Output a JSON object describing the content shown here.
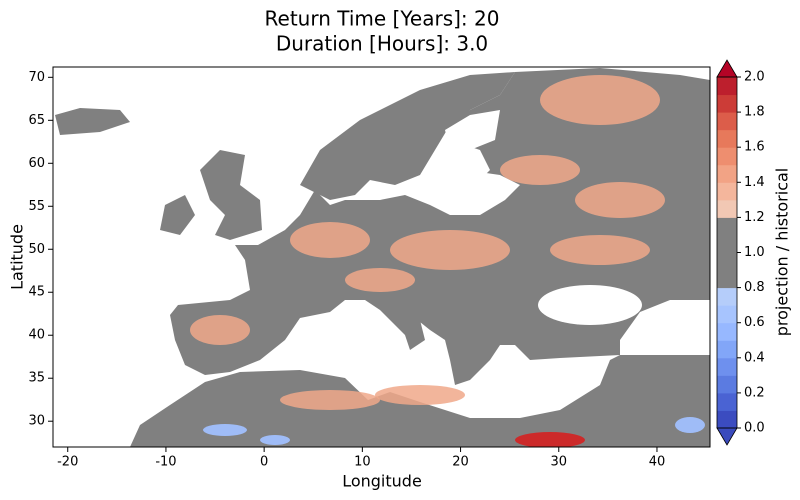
{
  "chart_data": {
    "type": "map",
    "title": "Return Time [Years]: 20",
    "subtitle": "Duration [Hours]: 3.0",
    "xlabel": "Longitude",
    "ylabel": "Latitude",
    "xlim": [
      -21.5,
      45.4
    ],
    "ylim": [
      27,
      71.2
    ],
    "xticks": [
      -20,
      -10,
      0,
      10,
      20,
      30,
      40
    ],
    "yticks": [
      30,
      35,
      40,
      45,
      50,
      55,
      60,
      65,
      70
    ],
    "colorbar": {
      "label": "projection / historical",
      "levels": [
        0,
        0.1,
        0.2,
        0.3,
        0.4,
        0.5,
        0.6,
        0.7,
        0.8,
        0.9,
        1.0,
        1.1,
        1.2,
        1.3,
        1.4,
        1.5,
        1.6,
        1.7,
        1.8,
        1.9,
        2.0
      ],
      "colors": [
        "#3b4cc0",
        "#4a63d3",
        "#5b7be1",
        "#6e90ee",
        "#82a6f8",
        "#97b8ff",
        "#a7c4fe",
        "#b5cdfa",
        "#808080",
        "#808080",
        "#808080",
        "#808080",
        "#f2c8b4",
        "#f4b69c",
        "#f2a385",
        "#ee8e6f",
        "#e7795b",
        "#dc5d4a",
        "#cc3c37",
        "#bd1f2d"
      ],
      "under_color": "#3a4bbd",
      "over_color": "#b40426",
      "ticks": [
        {
          "value": 0,
          "label": "0.0"
        },
        {
          "value": 0.2,
          "label": "0.2"
        },
        {
          "value": 0.4,
          "label": "0.4"
        },
        {
          "value": 0.6,
          "label": "0.6"
        },
        {
          "value": 0.8,
          "label": "0.8"
        },
        {
          "value": 1,
          "label": "1.0"
        },
        {
          "value": 1.2,
          "label": "1.2"
        },
        {
          "value": 1.4,
          "label": "1.4"
        },
        {
          "value": 1.6,
          "label": "1.6"
        },
        {
          "value": 1.8,
          "label": "1.8"
        },
        {
          "value": 2,
          "label": "2.0"
        }
      ]
    }
  }
}
